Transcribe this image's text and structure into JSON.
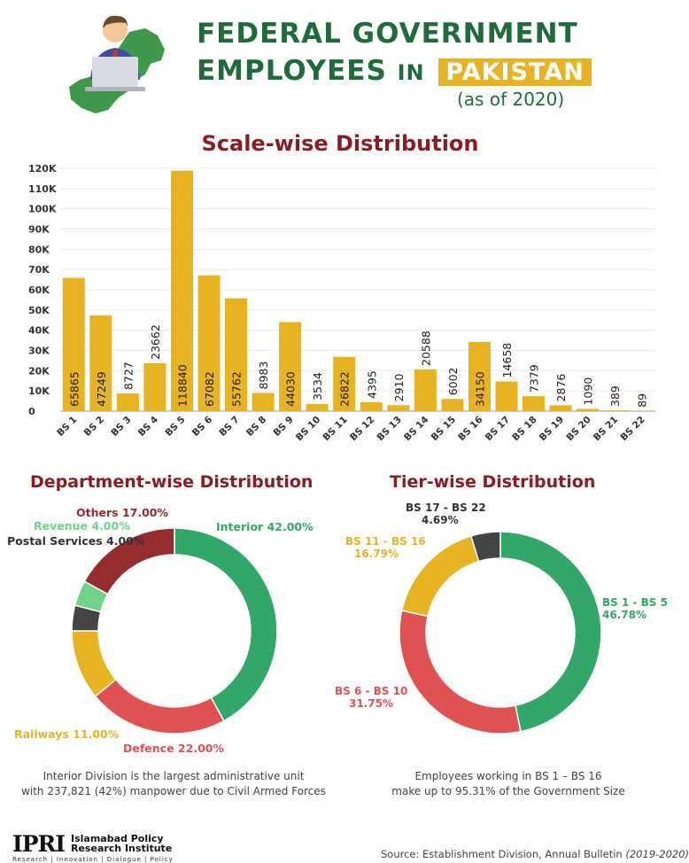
{
  "header": {
    "title_line1": "FEDERAL GOVERNMENT",
    "title_line2": "EMPLOYEES",
    "title_in": "IN",
    "title_badge": "PAKISTAN",
    "subtitle": "(as of 2020)"
  },
  "colors": {
    "title_green": "#1f6b3a",
    "section_red": "#8a1c22",
    "bar": "#e8b323",
    "green": "#33a76a",
    "red": "#e05252",
    "yellow": "#e8b323",
    "dark": "#444444",
    "light_green": "#6fd48a",
    "maroon": "#952c30"
  },
  "chart_data": [
    {
      "type": "bar",
      "title": "Scale-wise Distribution",
      "categories": [
        "BS 1",
        "BS 2",
        "BS 3",
        "BS 4",
        "BS 5",
        "BS 6",
        "BS 7",
        "BS 8",
        "BS 9",
        "BS 10",
        "BS 11",
        "BS 12",
        "BS 13",
        "BS 14",
        "BS 15",
        "BS 16",
        "BS 17",
        "BS 18",
        "BS 19",
        "BS 20",
        "BS 21",
        "BS 22"
      ],
      "values": [
        65865,
        47249,
        8727,
        23662,
        118840,
        67082,
        55762,
        8983,
        44030,
        3534,
        26822,
        4395,
        2910,
        20588,
        6002,
        34150,
        14658,
        7379,
        2876,
        1090,
        389,
        89
      ],
      "y_ticks": [
        "0",
        "10K",
        "20K",
        "30K",
        "40K",
        "50K",
        "60K",
        "70K",
        "80K",
        "90K",
        "100K",
        "110K",
        "120K"
      ],
      "ylim": [
        0,
        120000
      ],
      "grid": true,
      "data_labels": "inside-bar"
    },
    {
      "type": "pie",
      "title": "Department-wise Distribution",
      "slices": [
        {
          "label": "Interior",
          "value": 42.0,
          "display": "42.00%",
          "color": "#33a76a"
        },
        {
          "label": "Defence",
          "value": 22.0,
          "display": "22.00%",
          "color": "#e05252"
        },
        {
          "label": "Railways",
          "value": 11.0,
          "display": "11.00%",
          "color": "#e8b323"
        },
        {
          "label": "Postal Services",
          "value": 4.0,
          "display": "4.00%",
          "color": "#444444"
        },
        {
          "label": "Revenue",
          "value": 4.0,
          "display": "4.00%",
          "color": "#6fd48a"
        },
        {
          "label": "Others",
          "value": 17.0,
          "display": "17.00%",
          "color": "#952c30"
        }
      ],
      "note_line1": "Interior Division is the largest administrative unit",
      "note_line2": "with 237,821 (42%) manpower due to Civil Armed Forces"
    },
    {
      "type": "pie",
      "title": "Tier-wise Distribution",
      "slices": [
        {
          "label": "BS 1 - BS 5",
          "value": 46.78,
          "display": "46.78%",
          "color": "#33a76a"
        },
        {
          "label": "BS 6 - BS 10",
          "value": 31.75,
          "display": "31.75%",
          "color": "#e05252"
        },
        {
          "label": "BS 11 - BS 16",
          "value": 16.79,
          "display": "16.79%",
          "color": "#e8b323"
        },
        {
          "label": "BS 17 - BS 22",
          "value": 4.69,
          "display": "4.69%",
          "color": "#444444"
        }
      ],
      "note_line1": "Employees working in BS 1 – BS 16",
      "note_line2": "make up to 95.31% of the Government Size"
    }
  ],
  "footer": {
    "logo_mark": "IPRI",
    "logo_line1": "Islamabad Policy",
    "logo_line2": "Research Institute",
    "logo_tagline": "Research | Innovation | Dialogue | Policy",
    "source_prefix": "Source: Establishment Division, Annual Bulletin",
    "source_year": "(2019-2020)"
  }
}
